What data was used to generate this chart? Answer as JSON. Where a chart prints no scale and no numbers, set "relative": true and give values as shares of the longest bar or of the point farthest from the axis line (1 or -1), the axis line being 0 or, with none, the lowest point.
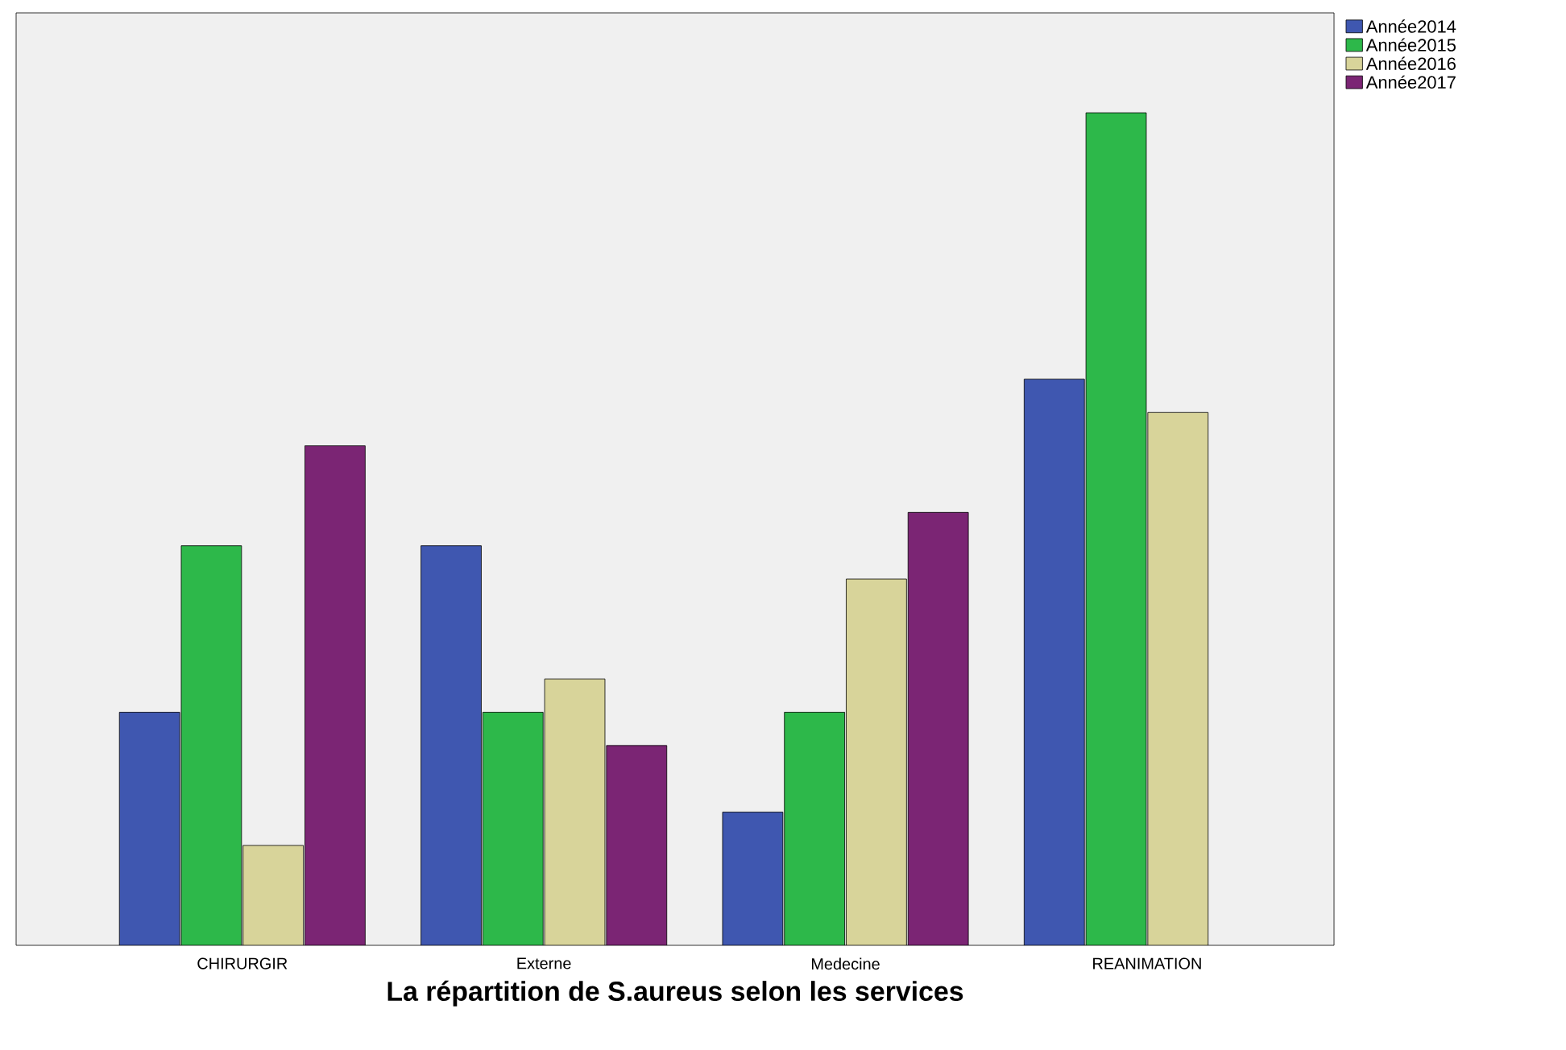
{
  "chart_data": {
    "type": "bar",
    "relative": true,
    "xlabel": "La répartition de S.aureus selon les services",
    "categories": [
      "CHIRURGIR",
      "Externe",
      "Medecine",
      "REANIMATION"
    ],
    "series": [
      {
        "name": "Année2014",
        "color": "#3f57b0",
        "values": [
          0.28,
          0.48,
          0.16,
          0.68
        ]
      },
      {
        "name": "Année2015",
        "color": "#2db84a",
        "values": [
          0.48,
          0.28,
          0.28,
          1.0
        ]
      },
      {
        "name": "Année2016",
        "color": "#d8d49a",
        "values": [
          0.12,
          0.32,
          0.44,
          0.64
        ]
      },
      {
        "name": "Année2017",
        "color": "#7b2574",
        "values": [
          0.6,
          0.24,
          0.52,
          null
        ]
      }
    ],
    "legend": "top right"
  }
}
